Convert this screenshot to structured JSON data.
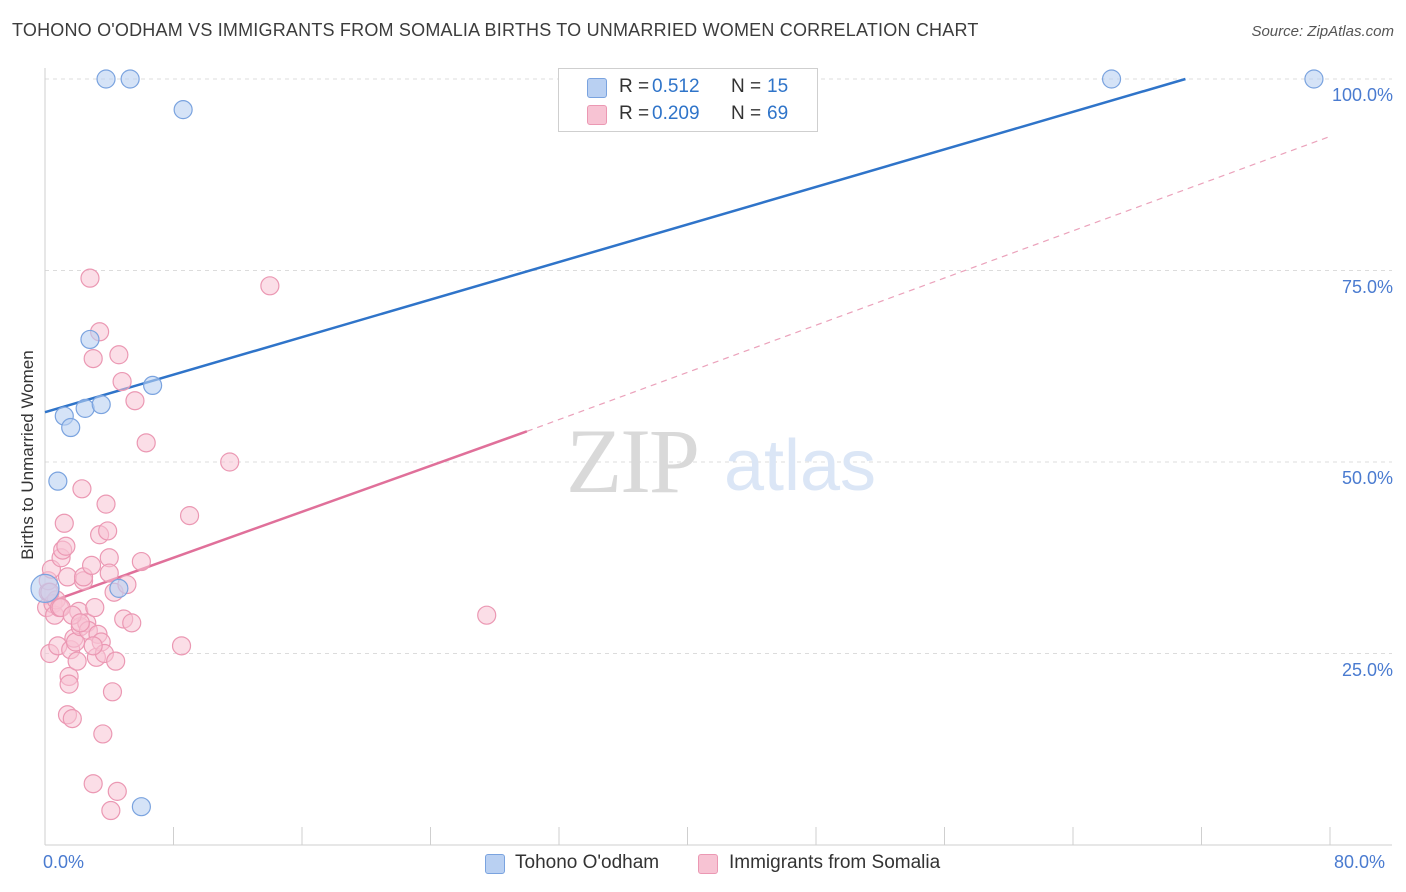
{
  "title": "TOHONO O'ODHAM VS IMMIGRANTS FROM SOMALIA BIRTHS TO UNMARRIED WOMEN CORRELATION CHART",
  "source": "Source: ZipAtlas.com",
  "watermark": {
    "zip": "ZIP",
    "atlas": "atlas"
  },
  "legend": {
    "rows": [
      {
        "r_label": "R =",
        "r_value": "0.512",
        "n_label": "N =",
        "n_value": "15"
      },
      {
        "r_label": "R =",
        "r_value": "0.209",
        "n_label": "N =",
        "n_value": "69"
      }
    ]
  },
  "colors": {
    "blue_fill": "#b9d0f2",
    "blue_stroke": "#7aa3df",
    "blue_line": "#2f74c9",
    "pink_fill": "#f7c3d3",
    "pink_stroke": "#eb98b3",
    "pink_line": "#e0709a",
    "axis_label": "#4a7bd0"
  },
  "chart_data": {
    "type": "scatter",
    "title": "TOHONO O'ODHAM VS IMMIGRANTS FROM SOMALIA BIRTHS TO UNMARRIED WOMEN CORRELATION CHART",
    "xlabel": "",
    "ylabel": "Births to Unmarried Women",
    "xlim": [
      0,
      80
    ],
    "ylim": [
      0,
      100
    ],
    "x_tick_labels": [
      "0.0%",
      "80.0%"
    ],
    "y_ticks": [
      25,
      50,
      75,
      100
    ],
    "y_tick_labels": [
      "25.0%",
      "50.0%",
      "75.0%",
      "100.0%"
    ],
    "grid": true,
    "legend_position": "top-center",
    "series": [
      {
        "name": "Tohono O'odham",
        "r": 0.512,
        "n": 15,
        "points": [
          [
            0.0,
            33.5
          ],
          [
            0.8,
            47.5
          ],
          [
            1.2,
            56.0
          ],
          [
            1.6,
            54.5
          ],
          [
            2.5,
            57.0
          ],
          [
            2.8,
            66.0
          ],
          [
            3.5,
            57.5
          ],
          [
            3.8,
            100.0
          ],
          [
            4.6,
            33.5
          ],
          [
            5.3,
            100.0
          ],
          [
            6.0,
            5.0
          ],
          [
            6.7,
            60.0
          ],
          [
            8.6,
            96.0
          ],
          [
            66.4,
            100.0
          ],
          [
            79.0,
            100.0
          ]
        ],
        "trend": {
          "x0": 0.0,
          "y0": 56.5,
          "x1": 71.0,
          "y1": 100.0
        }
      },
      {
        "name": "Immigrants from Somalia",
        "r": 0.209,
        "n": 69,
        "points": [
          [
            0.1,
            31.0
          ],
          [
            0.2,
            33.0
          ],
          [
            0.2,
            34.5
          ],
          [
            0.3,
            25.0
          ],
          [
            0.4,
            36.0
          ],
          [
            0.5,
            31.5
          ],
          [
            0.6,
            30.0
          ],
          [
            0.7,
            32.0
          ],
          [
            0.8,
            26.0
          ],
          [
            0.9,
            31.0
          ],
          [
            1.0,
            37.5
          ],
          [
            1.1,
            38.5
          ],
          [
            1.2,
            42.0
          ],
          [
            1.3,
            39.0
          ],
          [
            1.4,
            35.0
          ],
          [
            1.4,
            17.0
          ],
          [
            1.5,
            22.0
          ],
          [
            1.5,
            21.0
          ],
          [
            1.6,
            25.5
          ],
          [
            1.7,
            16.5
          ],
          [
            1.8,
            27.0
          ],
          [
            1.9,
            26.5
          ],
          [
            2.0,
            24.0
          ],
          [
            2.1,
            30.5
          ],
          [
            2.2,
            28.5
          ],
          [
            2.3,
            46.5
          ],
          [
            2.4,
            34.5
          ],
          [
            2.4,
            35.0
          ],
          [
            2.6,
            29.0
          ],
          [
            2.7,
            28.0
          ],
          [
            2.8,
            74.0
          ],
          [
            2.9,
            36.5
          ],
          [
            3.0,
            63.5
          ],
          [
            3.0,
            8.0
          ],
          [
            3.1,
            31.0
          ],
          [
            3.2,
            24.5
          ],
          [
            3.3,
            27.5
          ],
          [
            3.4,
            67.0
          ],
          [
            3.4,
            40.5
          ],
          [
            3.5,
            26.5
          ],
          [
            3.6,
            14.5
          ],
          [
            3.7,
            25.0
          ],
          [
            3.8,
            44.5
          ],
          [
            3.9,
            41.0
          ],
          [
            4.0,
            37.5
          ],
          [
            4.0,
            35.5
          ],
          [
            4.1,
            4.5
          ],
          [
            4.2,
            20.0
          ],
          [
            4.3,
            33.0
          ],
          [
            4.4,
            24.0
          ],
          [
            4.5,
            7.0
          ],
          [
            4.6,
            64.0
          ],
          [
            4.8,
            60.5
          ],
          [
            4.9,
            29.5
          ],
          [
            5.1,
            34.0
          ],
          [
            5.4,
            29.0
          ],
          [
            5.6,
            58.0
          ],
          [
            6.0,
            37.0
          ],
          [
            6.3,
            52.5
          ],
          [
            8.5,
            26.0
          ],
          [
            9.0,
            43.0
          ],
          [
            11.5,
            50.0
          ],
          [
            14.0,
            73.0
          ],
          [
            27.5,
            30.0
          ],
          [
            0.3,
            33.0
          ],
          [
            1.0,
            31.0
          ],
          [
            1.7,
            30.0
          ],
          [
            2.2,
            29.0
          ],
          [
            3.0,
            26.0
          ]
        ],
        "trend": {
          "x0": 0.0,
          "y0": 31.5,
          "x1": 30.0,
          "y1": 54.0
        },
        "trend_extension": {
          "x0": 30.0,
          "y0": 54.0,
          "x1": 80.0,
          "y1": 92.5
        }
      }
    ]
  }
}
